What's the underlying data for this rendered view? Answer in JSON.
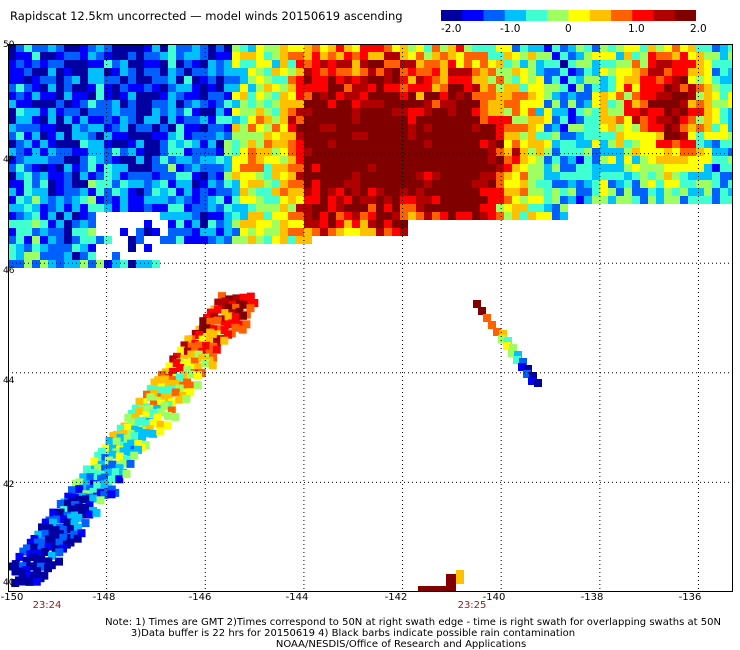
{
  "title": "Rapidscat 12.5km uncorrected — model winds 20150619 ascending",
  "colorbar": {
    "labels": [
      "-2.0",
      "-1.0",
      "0",
      "1.0",
      "2.0"
    ],
    "colors": [
      "#0000a0",
      "#0000ff",
      "#0060ff",
      "#00c0ff",
      "#40ffd0",
      "#a0ff60",
      "#ffff00",
      "#ffc000",
      "#ff6000",
      "#ff0000",
      "#b00000",
      "#800000"
    ]
  },
  "axes": {
    "x_ticks": [
      "-150",
      "-148",
      "-146",
      "-144",
      "-142",
      "-140",
      "-138",
      "-136"
    ],
    "y_ticks": [
      "50",
      "48",
      "46",
      "44",
      "42",
      "40"
    ],
    "x_range": [
      -150,
      -135.3
    ],
    "y_range": [
      40,
      50
    ],
    "grid": true
  },
  "times": [
    {
      "label": "23:24",
      "lon": -149.2
    },
    {
      "label": "23:25",
      "lon": -140.6
    }
  ],
  "notes": [
    "Note: 1) Times are GMT 2)Times correspond to 50N at right swath edge - time is right swath for overlapping swaths at 50N",
    "3)Data buffer is 22 hrs for 20150619 4) Black barbs indicate possible rain contamination",
    "NOAA/NESDIS/Office of Research and Applications"
  ]
}
